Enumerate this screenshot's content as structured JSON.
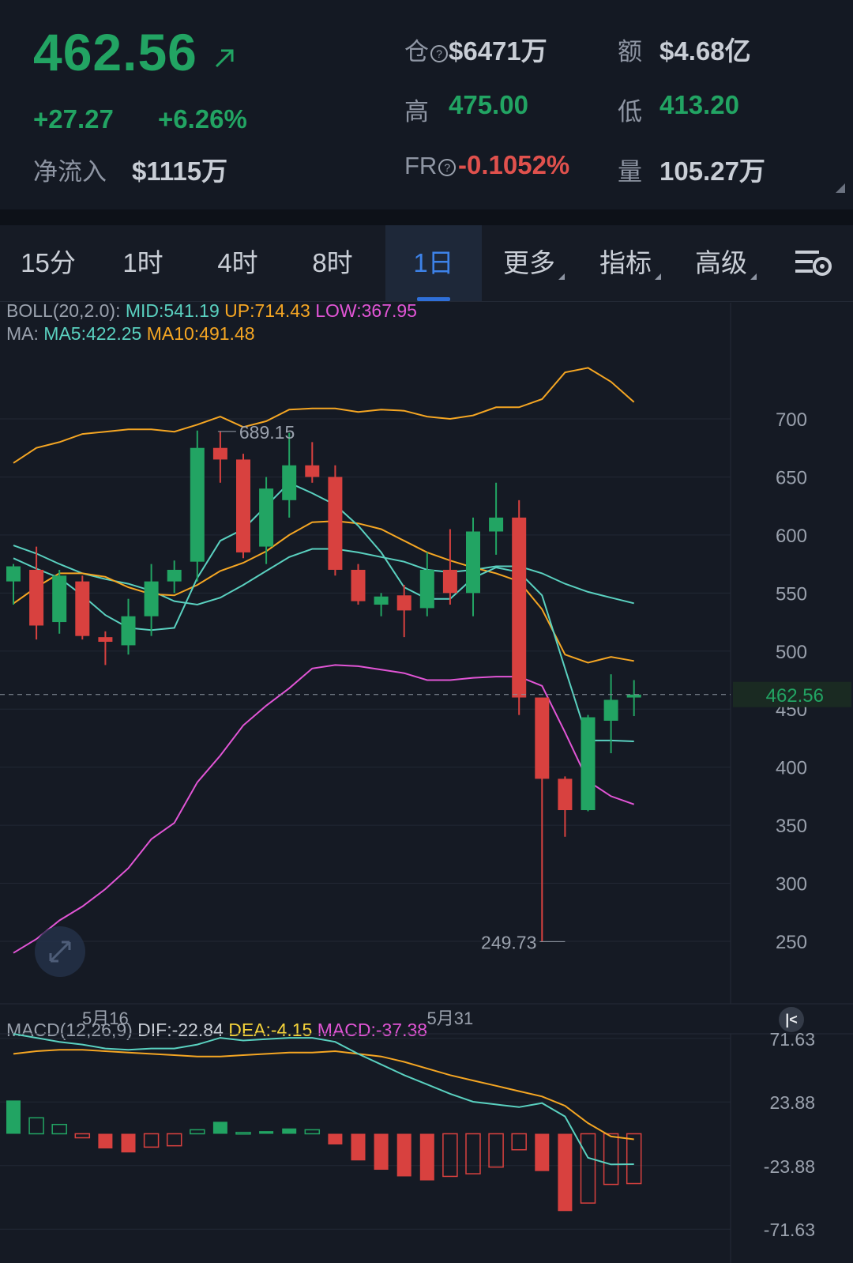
{
  "header": {
    "price": "462.56",
    "change": "+27.27",
    "change_pct": "+6.26%",
    "netflow_label": "净流入",
    "netflow_value": "$1115万",
    "oi_label": "仓",
    "oi_value": "$6471万",
    "turnover_label": "额",
    "turnover_value": "$4.68亿",
    "high_label": "高",
    "high_value": "475.00",
    "low_label": "低",
    "low_value": "413.20",
    "fr_label": "FR",
    "fr_value": "-0.1052%",
    "volume_label": "量",
    "volume_value": "105.27万"
  },
  "tabs": [
    {
      "label": "15分"
    },
    {
      "label": "1时"
    },
    {
      "label": "4时"
    },
    {
      "label": "8时"
    },
    {
      "label": "1日",
      "active": true
    },
    {
      "label": "更多"
    },
    {
      "label": "指标"
    },
    {
      "label": "高级"
    }
  ],
  "legend": {
    "boll_prefix": "BOLL(20,2.0):",
    "boll_mid": "MID:541.19",
    "boll_up": "UP:714.43",
    "boll_low": "LOW:367.95",
    "ma_prefix": "MA:",
    "ma5": "MA5:422.25",
    "ma10": "MA10:491.48",
    "macd_prefix": "MACD(12,26,9)",
    "dif": "DIF:-22.84",
    "dea": "DEA:-4.15",
    "macd": "MACD:-37.38"
  },
  "colors": {
    "up": "#22a463",
    "down": "#d8413f",
    "boll_mid": "#5ad1c0",
    "boll_up": "#f5a623",
    "boll_low": "#e255d6",
    "ma5": "#5ad1c0",
    "ma10": "#f5a623",
    "dif": "#5ad1c0",
    "dea": "#f5a623",
    "macd_label": "#e255d6"
  },
  "chart_data": [
    {
      "type": "candlestick",
      "y_ticks": [
        "700",
        "650",
        "600",
        "550",
        "500",
        "450",
        "400",
        "350",
        "300",
        "250"
      ],
      "ylim": [
        222,
        735
      ],
      "x_labels": [
        {
          "index": 4,
          "label": "5月16"
        },
        {
          "index": 19,
          "label": "5月31"
        }
      ],
      "current_price": "462.56",
      "high_marker": {
        "index": 9,
        "label": "689.15",
        "value": 689.15
      },
      "low_marker": {
        "index": 24,
        "label": "249.73",
        "value": 249.73
      },
      "candles": [
        {
          "o": 560,
          "h": 575,
          "l": 540,
          "c": 573
        },
        {
          "o": 570,
          "h": 590,
          "l": 510,
          "c": 522
        },
        {
          "o": 525,
          "h": 570,
          "l": 515,
          "c": 565
        },
        {
          "o": 560,
          "h": 565,
          "l": 510,
          "c": 513
        },
        {
          "o": 512,
          "h": 517,
          "l": 488,
          "c": 508
        },
        {
          "o": 505,
          "h": 545,
          "l": 497,
          "c": 530
        },
        {
          "o": 530,
          "h": 575,
          "l": 513,
          "c": 560
        },
        {
          "o": 560,
          "h": 578,
          "l": 550,
          "c": 570
        },
        {
          "o": 577,
          "h": 690,
          "l": 560,
          "c": 675
        },
        {
          "o": 675,
          "h": 689.15,
          "l": 645,
          "c": 665
        },
        {
          "o": 665,
          "h": 670,
          "l": 580,
          "c": 585
        },
        {
          "o": 590,
          "h": 650,
          "l": 575,
          "c": 640
        },
        {
          "o": 630,
          "h": 688,
          "l": 615,
          "c": 660
        },
        {
          "o": 660,
          "h": 680,
          "l": 645,
          "c": 650
        },
        {
          "o": 650,
          "h": 660,
          "l": 565,
          "c": 570
        },
        {
          "o": 570,
          "h": 575,
          "l": 540,
          "c": 543
        },
        {
          "o": 540,
          "h": 550,
          "l": 530,
          "c": 547
        },
        {
          "o": 548,
          "h": 557,
          "l": 512,
          "c": 535
        },
        {
          "o": 537,
          "h": 585,
          "l": 530,
          "c": 570
        },
        {
          "o": 570,
          "h": 605,
          "l": 540,
          "c": 550
        },
        {
          "o": 550,
          "h": 615,
          "l": 530,
          "c": 603
        },
        {
          "o": 603,
          "h": 645,
          "l": 583,
          "c": 615
        },
        {
          "o": 615,
          "h": 630,
          "l": 445,
          "c": 460
        },
        {
          "o": 460,
          "h": 460,
          "l": 250,
          "c": 390
        },
        {
          "o": 390,
          "h": 392,
          "l": 340,
          "c": 363
        },
        {
          "o": 363,
          "h": 445,
          "l": 362,
          "c": 443
        },
        {
          "o": 440,
          "h": 480,
          "l": 412,
          "c": 458
        },
        {
          "o": 460,
          "h": 475,
          "l": 444,
          "c": 462.56
        }
      ],
      "ma5": [
        580,
        571,
        563,
        548,
        531,
        520,
        518,
        520,
        563,
        595,
        605,
        625,
        645,
        636,
        626,
        608,
        585,
        555,
        545,
        545,
        563,
        572,
        568,
        548,
        485,
        423,
        423,
        422.25
      ],
      "ma10": [
        541,
        555,
        567,
        567,
        564,
        555,
        549,
        548,
        557,
        569,
        576,
        586,
        600,
        611,
        612,
        610,
        605,
        595,
        585,
        578,
        572,
        567,
        560,
        536,
        497,
        490,
        495,
        491.48
      ],
      "boll_mid": [
        591,
        584,
        575,
        567,
        562,
        558,
        552,
        543,
        540,
        546,
        557,
        569,
        581,
        588,
        588,
        585,
        581,
        577,
        570,
        568,
        570,
        573,
        573,
        567,
        558,
        551,
        546,
        541.19
      ],
      "boll_up": [
        662,
        675,
        680,
        687,
        689,
        691,
        691,
        689,
        695,
        702,
        693,
        698,
        708,
        709,
        709,
        706,
        708,
        707,
        702,
        700,
        703,
        710,
        710,
        717,
        740,
        744,
        732,
        714.43
      ],
      "boll_low": [
        240,
        252,
        268,
        280,
        295,
        313,
        338,
        352,
        387,
        410,
        436,
        453,
        468,
        485,
        488,
        487,
        484,
        481,
        475,
        475,
        477,
        478,
        478,
        470,
        430,
        388,
        375,
        367.95
      ]
    },
    {
      "type": "macd",
      "y_ticks": [
        "71.63",
        "23.88",
        "-23.88",
        "-71.63"
      ],
      "ylim": [
        -71.63,
        71.63
      ],
      "hist": [
        25,
        12,
        7,
        -3,
        -11,
        -14,
        -10,
        -9,
        3,
        9,
        1,
        2,
        4,
        3,
        -8,
        -20,
        -27,
        -32,
        -35,
        -32,
        -30,
        -25,
        -12,
        -28,
        -58,
        -52,
        -38,
        -37.38
      ],
      "dif": [
        75,
        72,
        69,
        67,
        64,
        63,
        64,
        64,
        67,
        72,
        70,
        71,
        72,
        72,
        69,
        60,
        52,
        44,
        37,
        30,
        24,
        22,
        20,
        23,
        13,
        -18,
        -23,
        -22.84
      ],
      "dea": [
        60,
        62,
        63,
        63,
        62,
        61,
        60,
        59,
        58,
        58,
        59,
        60,
        61,
        61,
        62,
        60,
        58,
        54,
        49,
        44,
        40,
        36,
        32,
        28,
        21,
        8,
        -2,
        -4.15
      ]
    }
  ]
}
